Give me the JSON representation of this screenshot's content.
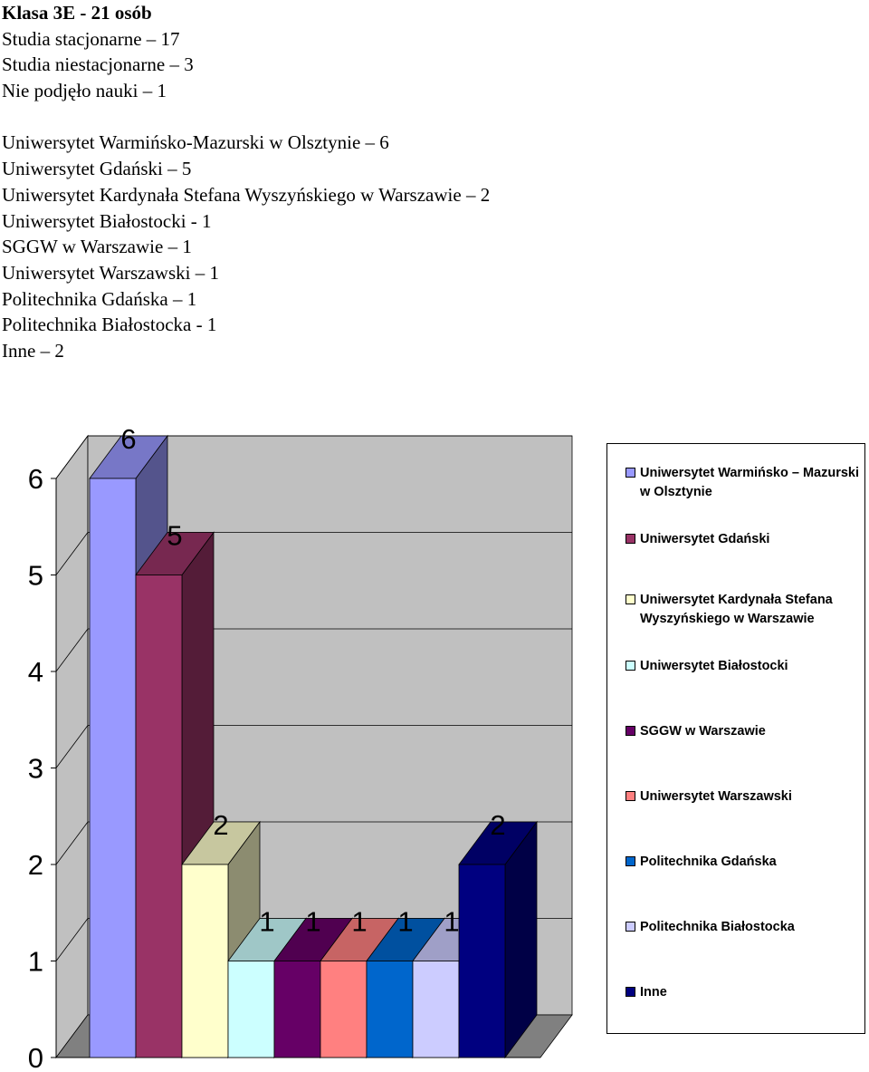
{
  "header": {
    "title": "Klasa 3E - 21 osób",
    "lines": [
      "Studia stacjonarne – 17",
      "Studia niestacjonarne – 3",
      "Nie podjęło nauki – 1"
    ]
  },
  "universities": [
    "Uniwersytet Warmińsko-Mazurski w Olsztynie – 6",
    "Uniwersytet Gdański – 5",
    "Uniwersytet Kardynała Stefana Wyszyńskiego w Warszawie – 2",
    "Uniwersytet Białostocki - 1",
    "SGGW w Warszawie – 1",
    "Uniwersytet Warszawski – 1",
    "Politechnika Gdańska – 1",
    "Politechnika Białostocka - 1",
    "Inne – 2"
  ],
  "chart_data": {
    "type": "bar",
    "style": "3d",
    "title": "",
    "xlabel": "",
    "ylabel": "",
    "ylim": [
      0,
      6
    ],
    "yticks": [
      "0",
      "1",
      "2",
      "3",
      "4",
      "5",
      "6"
    ],
    "grid": true,
    "legend_position": "right",
    "series": [
      {
        "name": "Uniwersytet Warmińsko – Mazurski w Olsztynie",
        "value": 6,
        "color": "#9999FF"
      },
      {
        "name": "Uniwersytet Gdański",
        "value": 5,
        "color": "#993366"
      },
      {
        "name": "Uniwersytet Kardynała Stefana Wyszyńskiego w Warszawie",
        "value": 2,
        "color": "#FFFFCC"
      },
      {
        "name": "Uniwersytet Białostocki",
        "value": 1,
        "color": "#CCFFFF"
      },
      {
        "name": "SGGW w Warszawie",
        "value": 1,
        "color": "#660066"
      },
      {
        "name": "Uniwersytet Warszawski",
        "value": 1,
        "color": "#FF8080"
      },
      {
        "name": "Politechnika Gdańska",
        "value": 1,
        "color": "#0066CC"
      },
      {
        "name": "Politechnika Białostocka",
        "value": 1,
        "color": "#CCCCFF"
      },
      {
        "name": "Inne",
        "value": 2,
        "color": "#000080"
      }
    ]
  }
}
